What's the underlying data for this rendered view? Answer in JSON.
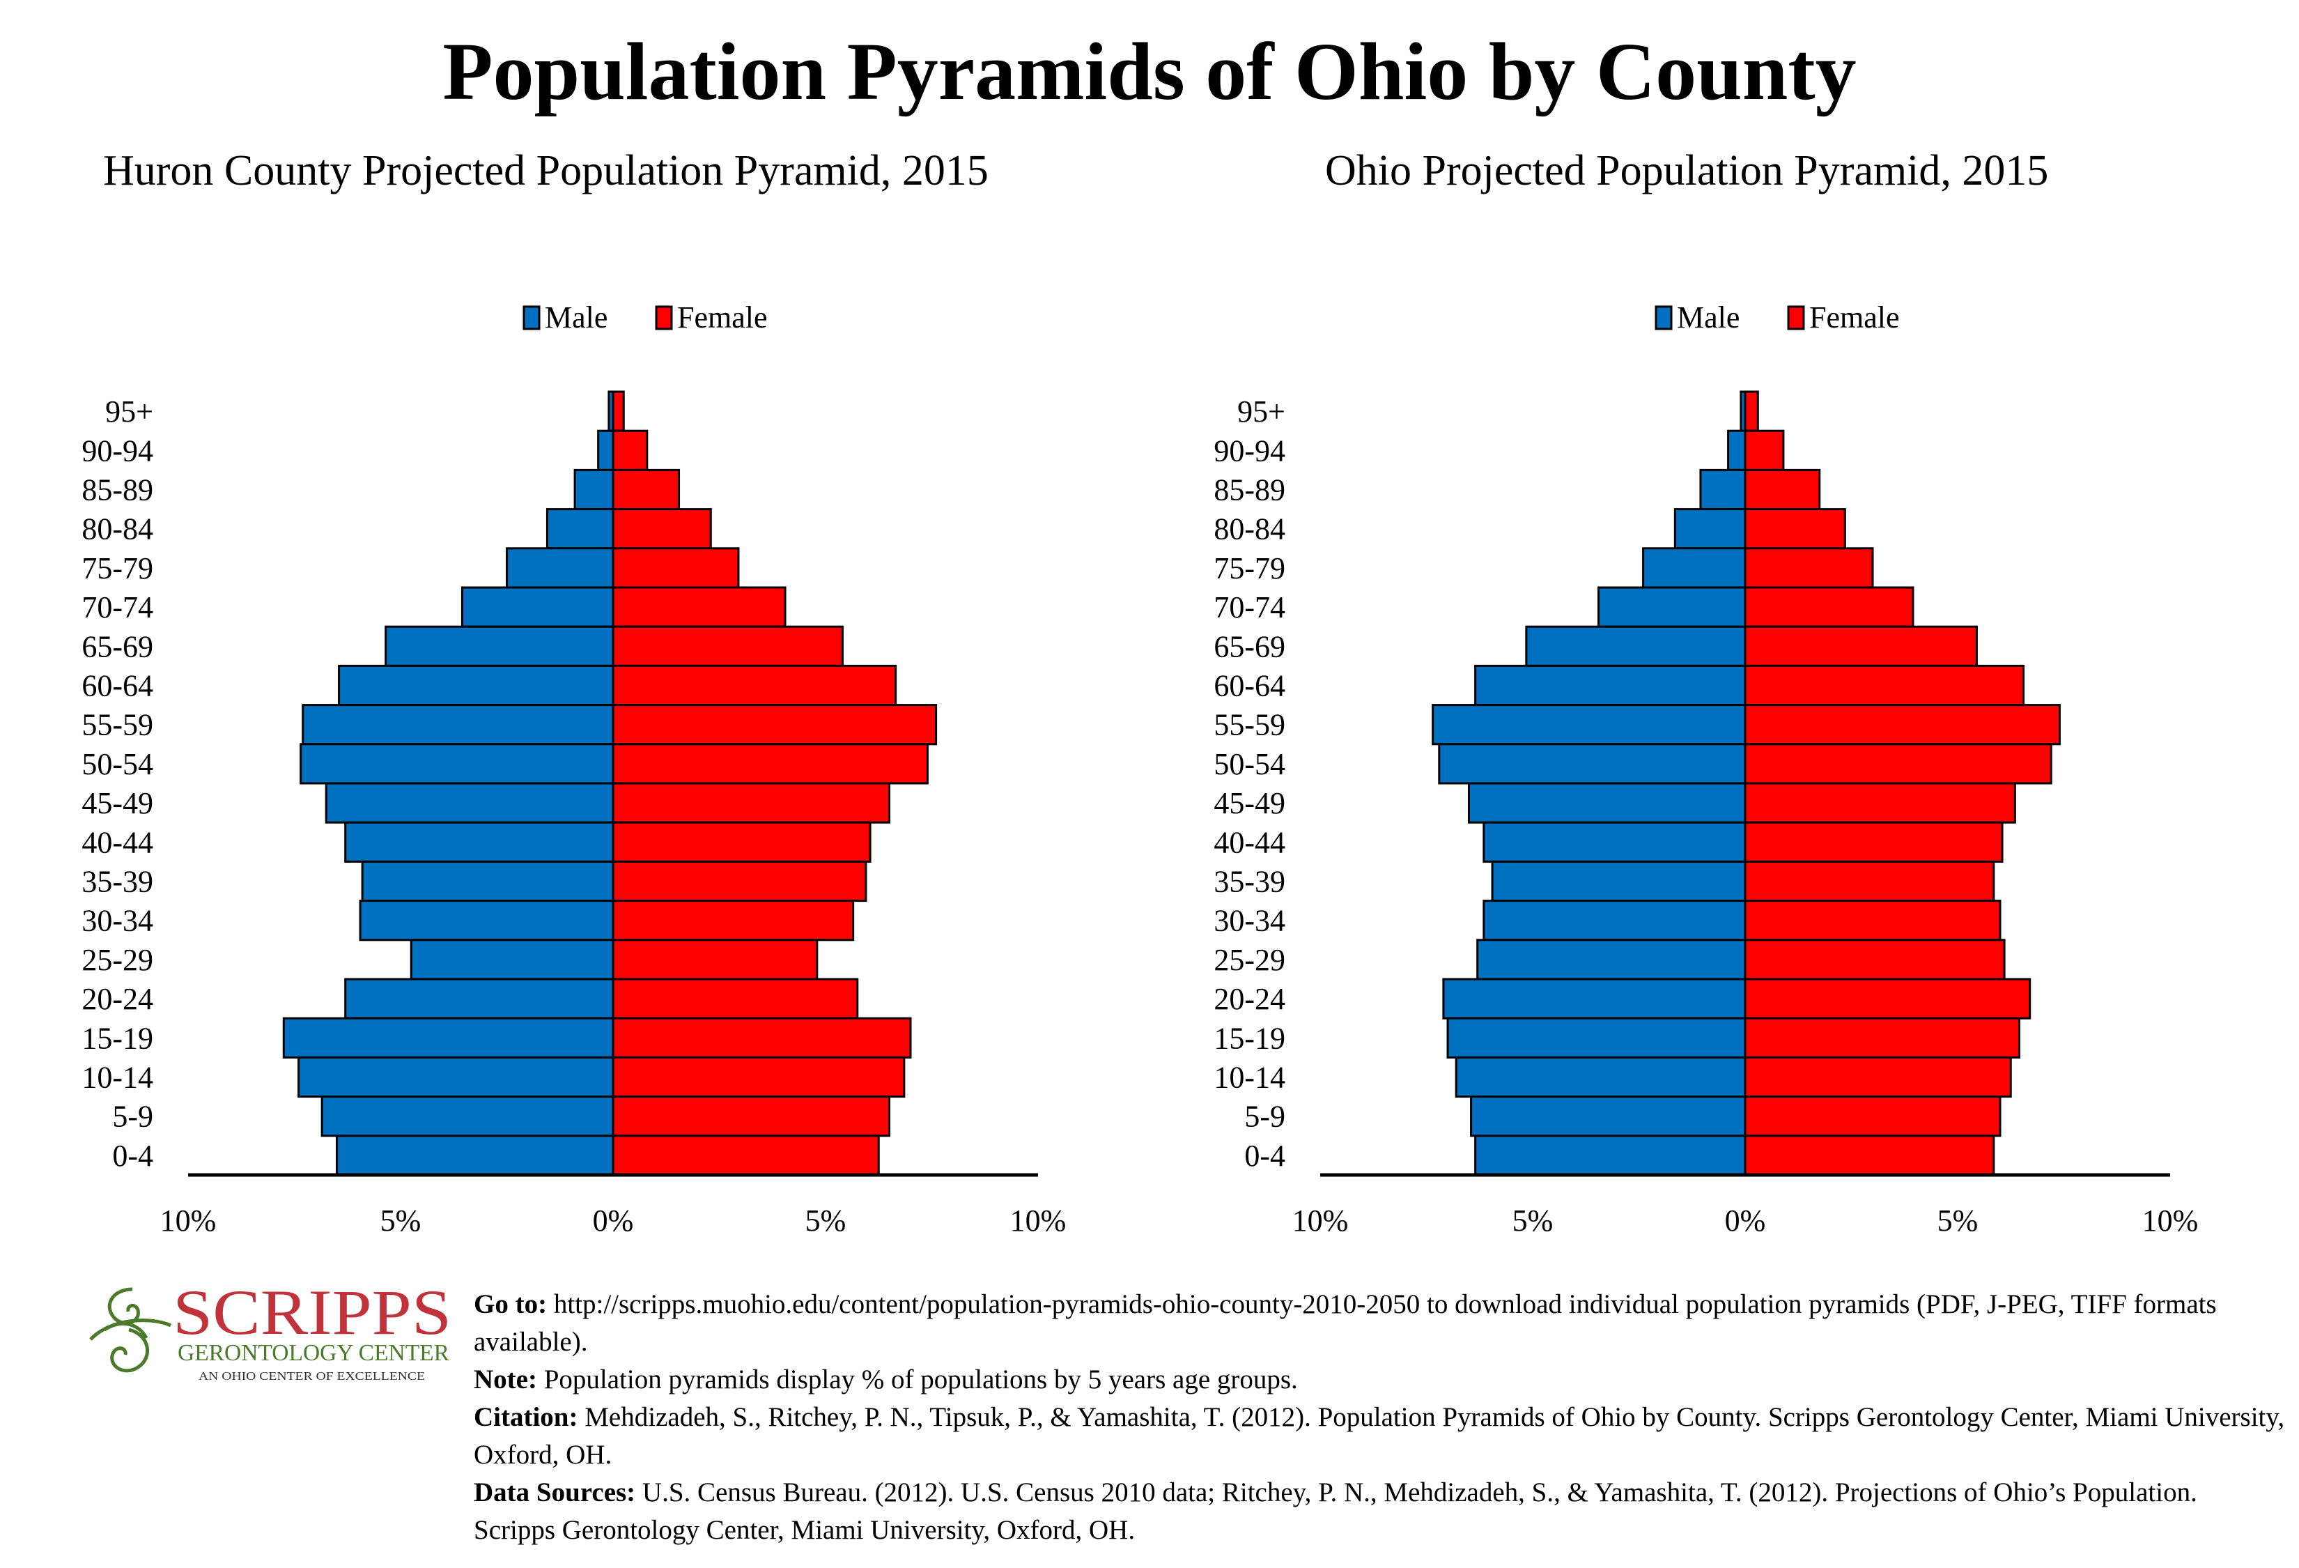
{
  "title": "Population Pyramids of Ohio by County",
  "legend": {
    "male": "Male",
    "female": "Female"
  },
  "colors": {
    "male": "#0070C0",
    "female": "#FF0000",
    "logo_red": "#C1333A",
    "logo_green": "#4A7A2A"
  },
  "chart_data": [
    {
      "type": "bar",
      "orientation": "horizontal-pyramid",
      "title": "Huron County Projected Population Pyramid, 2015",
      "categories": [
        "95+",
        "90-94",
        "85-89",
        "80-84",
        "75-79",
        "70-74",
        "65-69",
        "60-64",
        "55-59",
        "50-54",
        "45-49",
        "40-44",
        "35-39",
        "30-34",
        "25-29",
        "20-24",
        "15-19",
        "10-14",
        "5-9",
        "0-4"
      ],
      "series": [
        {
          "name": "Male",
          "values": [
            0.1,
            0.35,
            0.9,
            1.55,
            2.5,
            3.55,
            5.35,
            6.45,
            7.3,
            7.35,
            6.75,
            6.3,
            5.9,
            5.95,
            4.75,
            6.3,
            7.75,
            7.4,
            6.85,
            6.5
          ]
        },
        {
          "name": "Female",
          "values": [
            0.25,
            0.8,
            1.55,
            2.3,
            2.95,
            4.05,
            5.4,
            6.65,
            7.6,
            7.4,
            6.5,
            6.05,
            5.95,
            5.65,
            4.8,
            5.75,
            7.0,
            6.85,
            6.5,
            6.25
          ]
        }
      ],
      "xticks": [
        "10%",
        "5%",
        "0%",
        "5%",
        "10%"
      ],
      "xlim": [
        -10,
        10
      ],
      "legend_position": "top-center",
      "grid": false
    },
    {
      "type": "bar",
      "orientation": "horizontal-pyramid",
      "title": "Ohio Projected Population Pyramid, 2015",
      "categories": [
        "95+",
        "90-94",
        "85-89",
        "80-84",
        "75-79",
        "70-74",
        "65-69",
        "60-64",
        "55-59",
        "50-54",
        "45-49",
        "40-44",
        "35-39",
        "30-34",
        "25-29",
        "20-24",
        "15-19",
        "10-14",
        "5-9",
        "0-4"
      ],
      "series": [
        {
          "name": "Male",
          "values": [
            0.1,
            0.4,
            1.05,
            1.65,
            2.4,
            3.45,
            5.15,
            6.35,
            7.35,
            7.2,
            6.5,
            6.15,
            5.95,
            6.15,
            6.3,
            7.1,
            7.0,
            6.8,
            6.45,
            6.35
          ]
        },
        {
          "name": "Female",
          "values": [
            0.3,
            0.9,
            1.75,
            2.35,
            3.0,
            3.95,
            5.45,
            6.55,
            7.4,
            7.2,
            6.35,
            6.05,
            5.85,
            6.0,
            6.1,
            6.7,
            6.45,
            6.25,
            6.0,
            5.85
          ]
        }
      ],
      "xticks": [
        "10%",
        "5%",
        "0%",
        "5%",
        "10%"
      ],
      "xlim": [
        -10,
        10
      ],
      "legend_position": "top-center",
      "grid": false
    }
  ],
  "logo": {
    "name": "SCRIPPS",
    "line2": "GERONTOLOGY CENTER",
    "line3": "AN OHIO CENTER OF EXCELLENCE"
  },
  "footer": {
    "goto_label": "Go to:",
    "goto_text": " http://scripps.muohio.edu/content/population-pyramids-ohio-county-2010-2050 to download individual population pyramids (PDF, J-PEG, TIFF formats available).",
    "note_label": "Note:",
    "note_text": " Population pyramids display % of populations by 5 years age groups.",
    "citation_label": "Citation:",
    "citation_text": " Mehdizadeh, S., Ritchey, P. N., Tipsuk, P., & Yamashita, T. (2012). Population Pyramids of Ohio by County. Scripps Gerontology Center, Miami University, Oxford, OH.",
    "sources_label": "Data Sources:",
    "sources_text": " U.S. Census Bureau. (2012). U.S. Census 2010 data; Ritchey, P. N., Mehdizadeh, S., & Yamashita, T. (2012). Projections of Ohio’s Population. Scripps Gerontology Center, Miami University, Oxford, OH."
  }
}
